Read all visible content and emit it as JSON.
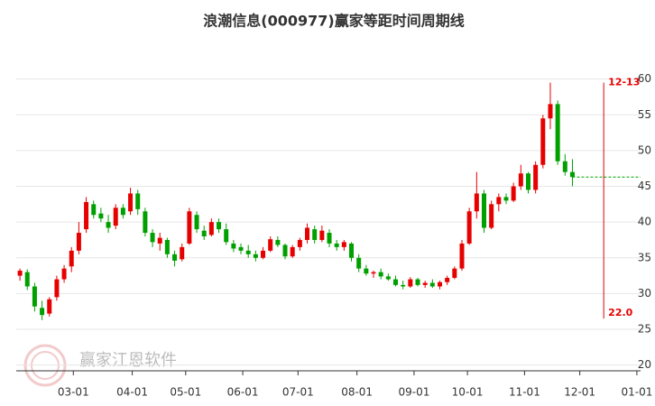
{
  "chart_data": {
    "type": "candlestick",
    "title": "浪潮信息(000977)赢家等距时间周期线",
    "watermark": "赢家江恩软件",
    "up_color": "#e60000",
    "down_color": "#00a000",
    "x": [
      30,
      34,
      38,
      42,
      46,
      50,
      54,
      58,
      62,
      66,
      70,
      74,
      78,
      82,
      86,
      90,
      94,
      98,
      102,
      106,
      110,
      114,
      118,
      122,
      126,
      130,
      134,
      138,
      142,
      146,
      150,
      154,
      158,
      162,
      166,
      170,
      174,
      178,
      182,
      186,
      190,
      194,
      198,
      202,
      206,
      210,
      214,
      218,
      222,
      226,
      230,
      234,
      238,
      242,
      246,
      250,
      254,
      258,
      262,
      266,
      270,
      274,
      278,
      282,
      286,
      290,
      294,
      298,
      302,
      306,
      310,
      314,
      318,
      322,
      326,
      330
    ],
    "open": [
      32.5,
      33.0,
      31.0,
      28.0,
      27.2,
      29.5,
      32.0,
      33.8,
      36.0,
      39.0,
      42.5,
      41.2,
      40.0,
      39.5,
      42.0,
      41.5,
      44.0,
      41.5,
      38.5,
      37.0,
      37.5,
      35.5,
      34.8,
      37.0,
      41.0,
      38.8,
      38.2,
      40.0,
      39.0,
      37.0,
      36.5,
      36.0,
      35.5,
      35.0,
      36.0,
      37.5,
      36.8,
      35.2,
      36.5,
      37.5,
      39.0,
      37.5,
      38.5,
      37.0,
      36.5,
      37.0,
      35.0,
      33.5,
      32.8,
      33.0,
      32.4,
      32.0,
      31.2,
      31.0,
      32.0,
      31.2,
      31.5,
      31.0,
      31.6,
      32.2,
      33.5,
      37.0,
      41.5,
      44.0,
      39.2,
      42.5,
      43.5,
      43.0,
      45.0,
      46.8,
      44.5,
      48.0,
      54.5,
      56.5,
      48.5,
      47.0
    ],
    "high": [
      33.5,
      33.4,
      31.5,
      29.0,
      29.5,
      32.5,
      34.0,
      36.5,
      40.0,
      43.5,
      43.0,
      42.0,
      41.0,
      42.5,
      42.5,
      44.8,
      44.5,
      42.0,
      39.0,
      38.5,
      37.8,
      36.0,
      37.0,
      42.0,
      41.5,
      39.5,
      40.5,
      40.5,
      39.8,
      37.5,
      37.0,
      36.8,
      36.0,
      36.5,
      38.0,
      38.0,
      37.0,
      36.8,
      37.8,
      39.8,
      39.5,
      39.5,
      39.0,
      37.5,
      37.5,
      37.2,
      35.5,
      34.0,
      33.2,
      33.5,
      32.8,
      32.5,
      31.8,
      32.3,
      32.2,
      31.8,
      32.0,
      31.8,
      32.5,
      33.8,
      37.5,
      42.0,
      47.0,
      44.5,
      43.0,
      44.0,
      44.0,
      45.5,
      48.0,
      47.0,
      48.5,
      55.0,
      59.5,
      57.0,
      49.5,
      48.8
    ],
    "low": [
      31.8,
      30.5,
      27.5,
      26.3,
      26.8,
      29.0,
      31.5,
      33.0,
      35.5,
      38.5,
      40.5,
      40.0,
      38.5,
      39.0,
      40.5,
      41.0,
      41.0,
      38.0,
      36.5,
      36.0,
      35.0,
      33.8,
      34.5,
      36.8,
      38.5,
      37.5,
      38.0,
      38.5,
      36.8,
      35.8,
      35.5,
      35.0,
      34.5,
      34.8,
      35.8,
      36.5,
      34.8,
      35.0,
      36.0,
      37.0,
      37.0,
      37.2,
      36.5,
      36.0,
      36.0,
      34.5,
      33.0,
      32.5,
      32.2,
      32.0,
      31.8,
      31.0,
      30.6,
      30.8,
      31.0,
      30.8,
      30.8,
      30.6,
      31.2,
      32.0,
      33.2,
      36.8,
      40.5,
      38.5,
      39.0,
      41.5,
      42.5,
      42.8,
      44.5,
      44.0,
      44.0,
      47.5,
      53.0,
      48.0,
      46.5,
      45.0
    ],
    "close": [
      33.2,
      31.0,
      28.2,
      27.0,
      29.2,
      32.0,
      33.5,
      36.0,
      38.5,
      42.8,
      41.0,
      40.5,
      39.2,
      42.0,
      41.0,
      44.0,
      41.8,
      38.5,
      37.2,
      37.8,
      35.5,
      34.6,
      36.5,
      41.5,
      39.0,
      38.0,
      40.0,
      39.0,
      37.2,
      36.3,
      36.0,
      35.5,
      35.0,
      36.0,
      37.6,
      36.8,
      35.2,
      36.5,
      37.5,
      39.2,
      37.5,
      38.8,
      37.0,
      36.5,
      37.2,
      35.0,
      33.5,
      32.8,
      33.0,
      32.4,
      32.0,
      31.2,
      31.0,
      32.0,
      31.2,
      31.5,
      31.0,
      31.6,
      32.2,
      33.5,
      37.0,
      41.5,
      44.0,
      39.2,
      42.5,
      43.5,
      43.0,
      45.0,
      46.8,
      44.5,
      48.0,
      54.5,
      56.5,
      48.5,
      47.0,
      46.3
    ],
    "reference_line": {
      "value": 46.3,
      "color": "#00a000"
    },
    "cycle_line": {
      "x": {
        "value": 347,
        "label": "12-13"
      },
      "y_top": 59.5,
      "y_bottom": 26.5,
      "bottom_label": "22.0",
      "color": "#e60000"
    },
    "xlim": [
      28,
      367
    ],
    "xticks": [
      {
        "value": 59,
        "label": "03-01"
      },
      {
        "value": 91,
        "label": "04-01"
      },
      {
        "value": 120,
        "label": "05-01"
      },
      {
        "value": 151,
        "label": "06-01"
      },
      {
        "value": 181,
        "label": "07-01"
      },
      {
        "value": 213,
        "label": "08-01"
      },
      {
        "value": 244,
        "label": "09-01"
      },
      {
        "value": 273,
        "label": "10-01"
      },
      {
        "value": 304,
        "label": "11-01"
      },
      {
        "value": 334,
        "label": "12-01"
      },
      {
        "value": 365,
        "label": "01-01"
      }
    ],
    "ylim": [
      19.2,
      65
    ],
    "yticks": [
      20,
      25,
      30,
      35,
      40,
      45,
      50,
      55,
      60
    ],
    "grid": true
  }
}
